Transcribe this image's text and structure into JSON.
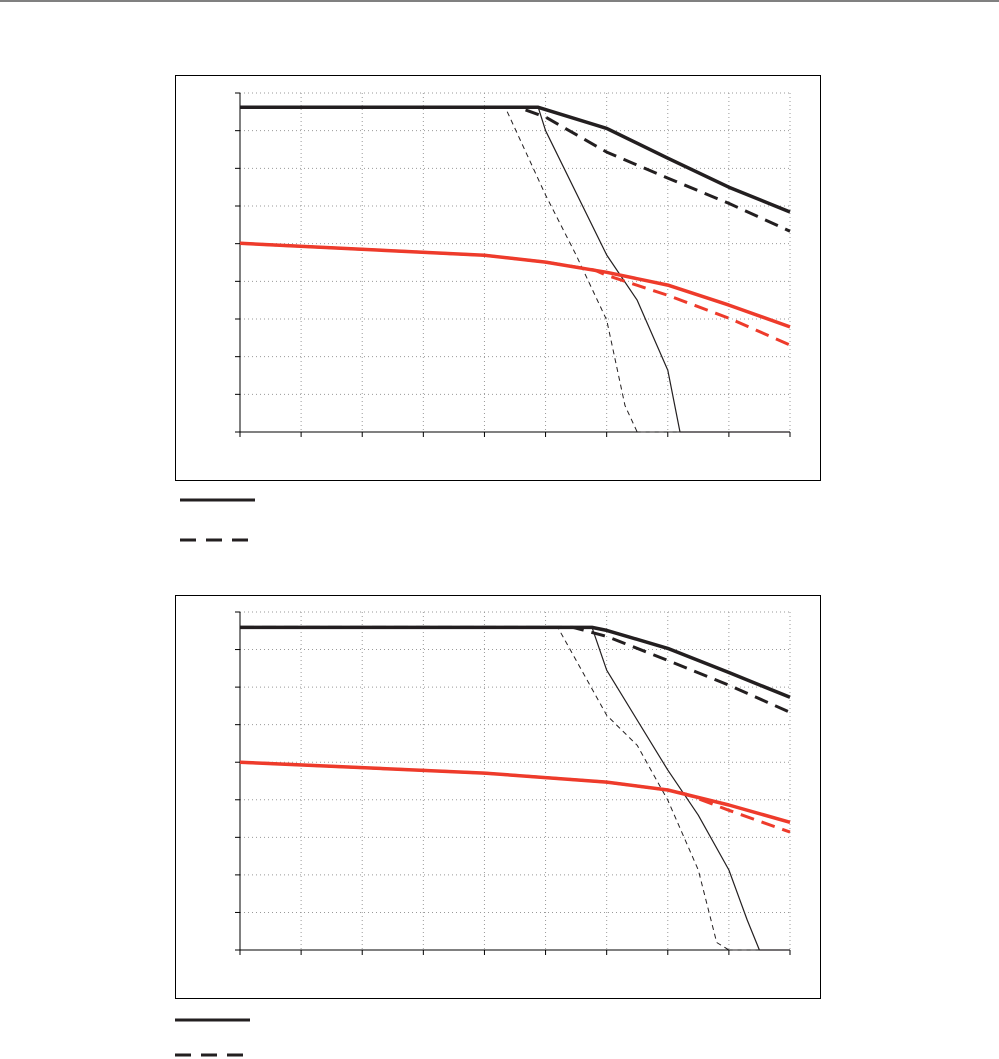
{
  "chart_data": [
    {
      "type": "line",
      "xlim": [
        0,
        9
      ],
      "ylim": [
        0,
        9
      ],
      "xticks": [
        0,
        1,
        2,
        3,
        4,
        5,
        6,
        7,
        8,
        9
      ],
      "yticks": [
        0,
        1,
        2,
        3,
        4,
        5,
        6,
        7,
        8,
        9
      ],
      "grid": true,
      "series": [
        {
          "color": "#231f20",
          "width": 3.5,
          "dash": false,
          "x": [
            0,
            4.88,
            6,
            7,
            8,
            9
          ],
          "values": [
            8.62,
            8.62,
            8.06,
            7.27,
            6.5,
            5.84
          ]
        },
        {
          "color": "#231f20",
          "width": 3,
          "dash": true,
          "x": [
            0,
            4.55,
            5,
            6,
            7,
            8,
            9
          ],
          "values": [
            8.62,
            8.62,
            8.36,
            7.43,
            6.74,
            6.07,
            5.33
          ]
        },
        {
          "color": "#231f20",
          "width": 1.2,
          "dash": false,
          "x": [
            0,
            4.88,
            5,
            6,
            6.5,
            7,
            7.2,
            9
          ],
          "values": [
            8.62,
            8.62,
            8.0,
            4.7,
            3.5,
            1.64,
            0,
            0
          ]
        },
        {
          "color": "#231f20",
          "width": 1,
          "dash": true,
          "x": [
            0,
            4.34,
            5,
            5.5,
            6,
            6.3,
            6.5,
            9
          ],
          "values": [
            8.62,
            8.62,
            6.29,
            4.7,
            2.97,
            0.7,
            0,
            0
          ]
        },
        {
          "color": "#ee3b2b",
          "width": 3.5,
          "dash": false,
          "x": [
            0,
            4,
            5,
            6,
            7,
            8,
            9
          ],
          "values": [
            5.01,
            4.69,
            4.51,
            4.24,
            3.9,
            3.37,
            2.79
          ]
        },
        {
          "color": "#ee3b2b",
          "width": 3,
          "dash": true,
          "x": [
            0,
            4,
            5,
            5.8,
            6,
            7,
            8,
            9
          ],
          "values": [
            5.01,
            4.69,
            4.51,
            4.3,
            4.16,
            3.63,
            3.02,
            2.31
          ]
        }
      ]
    },
    {
      "type": "line",
      "xlim": [
        0,
        9
      ],
      "ylim": [
        0,
        9
      ],
      "xticks": [
        0,
        1,
        2,
        3,
        4,
        5,
        6,
        7,
        8,
        9
      ],
      "yticks": [
        0,
        1,
        2,
        3,
        4,
        5,
        6,
        7,
        8,
        9
      ],
      "grid": true,
      "series": [
        {
          "color": "#231f20",
          "width": 3.5,
          "dash": false,
          "x": [
            0,
            5.76,
            6,
            7,
            8,
            9
          ],
          "values": [
            8.59,
            8.59,
            8.51,
            8.03,
            7.39,
            6.73
          ]
        },
        {
          "color": "#231f20",
          "width": 3,
          "dash": true,
          "x": [
            0,
            5.45,
            6,
            7,
            8,
            9
          ],
          "values": [
            8.59,
            8.59,
            8.35,
            7.71,
            7.05,
            6.33
          ]
        },
        {
          "color": "#231f20",
          "width": 1.2,
          "dash": false,
          "x": [
            0,
            5.76,
            6,
            7,
            7.5,
            8,
            8.3,
            8.5,
            9
          ],
          "values": [
            8.59,
            8.59,
            7.45,
            4.79,
            3.59,
            2.13,
            0.8,
            0,
            0
          ]
        },
        {
          "color": "#231f20",
          "width": 1,
          "dash": true,
          "x": [
            0,
            5.2,
            6,
            6.5,
            7,
            7.5,
            7.8,
            8,
            9
          ],
          "values": [
            8.59,
            8.59,
            6.25,
            5.45,
            3.99,
            2.13,
            0.2,
            0,
            0
          ]
        },
        {
          "color": "#ee3b2b",
          "width": 3.5,
          "dash": false,
          "x": [
            0,
            4,
            6,
            7,
            8,
            9
          ],
          "values": [
            5.0,
            4.71,
            4.47,
            4.26,
            3.86,
            3.4
          ]
        },
        {
          "color": "#ee3b2b",
          "width": 3,
          "dash": true,
          "x": [
            0,
            4,
            6,
            7,
            7.3,
            8,
            9
          ],
          "values": [
            5.0,
            4.71,
            4.47,
            4.26,
            4.15,
            3.72,
            3.14
          ]
        }
      ]
    }
  ]
}
